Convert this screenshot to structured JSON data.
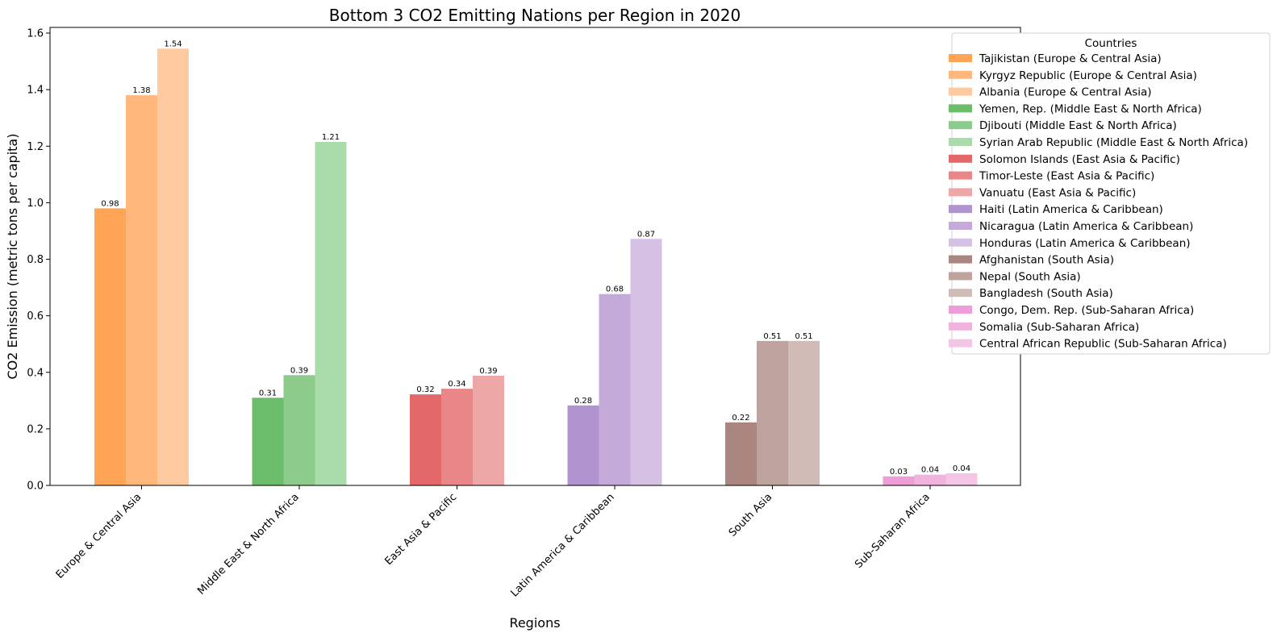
{
  "chart_data": {
    "type": "bar",
    "title": "Bottom 3 CO2 Emitting Nations per Region in 2020",
    "xlabel": "Regions",
    "ylabel": "CO2 Emission (metric tons per capita)",
    "ylim": [
      0,
      1.62
    ],
    "yticks": [
      "0.0",
      "0.2",
      "0.4",
      "0.6",
      "0.8",
      "1.0",
      "1.2",
      "1.4",
      "1.6"
    ],
    "legend_title": "Countries",
    "legend_position": "upper-right (outside plot)",
    "grid": false,
    "categories": [
      "Europe & Central Asia",
      "Middle East & North Africa",
      "East Asia & Pacific",
      "Latin America & Caribbean",
      "South Asia",
      "Sub-Saharan Africa"
    ],
    "groups": [
      {
        "region": "Europe & Central Asia",
        "bars": [
          {
            "name": "Tajikistan (Europe & Central Asia)",
            "value": 0.98,
            "label": "0.98",
            "color": "#ffa555"
          },
          {
            "name": "Kyrgyz Republic (Europe & Central Asia)",
            "value": 1.38,
            "label": "1.38",
            "color": "#ffb77b"
          },
          {
            "name": "Albania (Europe & Central Asia)",
            "value": 1.545,
            "label": "1.54",
            "color": "#ffcaa0"
          }
        ]
      },
      {
        "region": "Middle East & North Africa",
        "bars": [
          {
            "name": "Yemen, Rep. (Middle East & North Africa)",
            "value": 0.31,
            "label": "0.31",
            "color": "#6bbc6b"
          },
          {
            "name": "Djibouti (Middle East & North Africa)",
            "value": 0.39,
            "label": "0.39",
            "color": "#8ccb8c"
          },
          {
            "name": "Syrian Arab Republic (Middle East & North Africa)",
            "value": 1.215,
            "label": "1.21",
            "color": "#aadbaa"
          }
        ]
      },
      {
        "region": "East Asia & Pacific",
        "bars": [
          {
            "name": "Solomon Islands (East Asia & Pacific)",
            "value": 0.322,
            "label": "0.32",
            "color": "#e36869"
          },
          {
            "name": "Timor-Leste (East Asia & Pacific)",
            "value": 0.342,
            "label": "0.34",
            "color": "#e98788"
          },
          {
            "name": "Vanuatu (East Asia & Pacific)",
            "value": 0.388,
            "label": "0.39",
            "color": "#eea7a7"
          }
        ]
      },
      {
        "region": "Latin America & Caribbean",
        "bars": [
          {
            "name": "Haiti (Latin America & Caribbean)",
            "value": 0.283,
            "label": "0.28",
            "color": "#b194cf"
          },
          {
            "name": "Nicaragua (Latin America & Caribbean)",
            "value": 0.677,
            "label": "0.68",
            "color": "#c4aad9"
          },
          {
            "name": "Honduras (Latin America & Caribbean)",
            "value": 0.872,
            "label": "0.87",
            "color": "#d4c1e4"
          }
        ]
      },
      {
        "region": "South Asia",
        "bars": [
          {
            "name": "Afghanistan (South Asia)",
            "value": 0.223,
            "label": "0.22",
            "color": "#ab8680"
          },
          {
            "name": "Nepal (South Asia)",
            "value": 0.511,
            "label": "0.51",
            "color": "#bea29d"
          },
          {
            "name": "Bangladesh (South Asia)",
            "value": 0.511,
            "label": "0.51",
            "color": "#d0bbb6"
          }
        ]
      },
      {
        "region": "Sub-Saharan Africa",
        "bars": [
          {
            "name": "Congo, Dem. Rep. (Sub-Saharan Africa)",
            "value": 0.032,
            "label": "0.03",
            "color": "#ed9ed6"
          },
          {
            "name": "Somalia (Sub-Saharan Africa)",
            "value": 0.038,
            "label": "0.04",
            "color": "#f0b3dd"
          },
          {
            "name": "Central African Republic (Sub-Saharan Africa)",
            "value": 0.043,
            "label": "0.04",
            "color": "#f3c6e5"
          }
        ]
      }
    ]
  }
}
